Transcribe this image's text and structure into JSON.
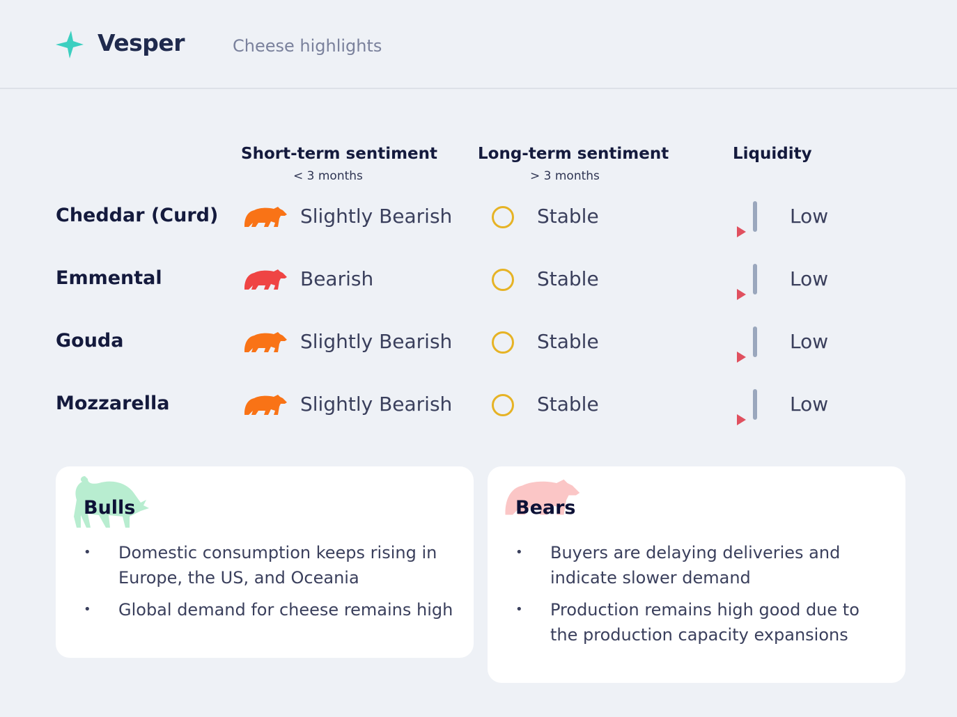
{
  "header": {
    "brand": "Vesper",
    "subtitle": "Cheese highlights",
    "logo_icon": "sparkle-icon",
    "logo_color": "#3ccfc0"
  },
  "columns": [
    {
      "title": "Short-term sentiment",
      "sub": "< 3 months"
    },
    {
      "title": "Long-term sentiment",
      "sub": "> 3 months"
    },
    {
      "title": "Liquidity"
    }
  ],
  "rows": [
    {
      "name": "Cheddar (Curd)",
      "short": "Slightly Bearish",
      "short_color": "#f97316",
      "long": "Stable",
      "liquidity": "Low"
    },
    {
      "name": "Emmental",
      "short": "Bearish",
      "short_color": "#ef4444",
      "long": "Stable",
      "liquidity": "Low"
    },
    {
      "name": "Gouda",
      "short": "Slightly Bearish",
      "short_color": "#f97316",
      "long": "Stable",
      "liquidity": "Low"
    },
    {
      "name": "Mozzarella",
      "short": "Slightly Bearish",
      "short_color": "#f97316",
      "long": "Stable",
      "liquidity": "Low"
    }
  ],
  "bulls": {
    "title": "Bulls",
    "items": [
      "Domestic consumption keeps rising in Europe, the US, and Oceania",
      "Global demand for cheese remains high"
    ]
  },
  "bears": {
    "title": "Bears",
    "items": [
      "Buyers are delaying deliveries and indicate slower demand",
      "Production remains high good due to the production capacity expansions"
    ]
  }
}
